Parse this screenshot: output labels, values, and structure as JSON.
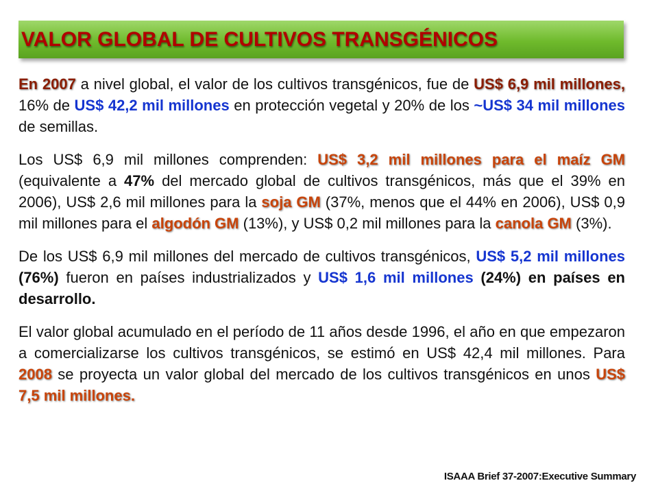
{
  "title": "VALOR GLOBAL DE CULTIVOS TRANSGÉNICOS",
  "paragraphs": [
    {
      "runs": [
        {
          "style": "red",
          "text": "En 2007"
        },
        {
          "style": "normal",
          "text": " a nivel global, el valor de los cultivos transgénicos, fue de "
        },
        {
          "style": "red",
          "text": "US$ 6,9 mil millones,"
        },
        {
          "style": "normal",
          "text": " 16% de "
        },
        {
          "style": "blue",
          "text": "US$ 42,2 mil millones"
        },
        {
          "style": "normal",
          "text": " en protección vegetal y 20% de los "
        },
        {
          "style": "blue",
          "text": "~US$ 34 mil millones"
        },
        {
          "style": "normal",
          "text": " de semillas."
        }
      ]
    },
    {
      "runs": [
        {
          "style": "normal",
          "text": "Los US$ 6,9 mil millones comprenden: "
        },
        {
          "style": "orange",
          "text": "US$ 3,2 mil millones para el maíz GM"
        },
        {
          "style": "normal",
          "text": " (equivalente a "
        },
        {
          "style": "bold",
          "text": "47%"
        },
        {
          "style": "normal",
          "text": " del mercado global de cultivos transgénicos, más que el 39% en 2006), US$ 2,6 mil millones para la "
        },
        {
          "style": "orange",
          "text": "soja GM"
        },
        {
          "style": "normal",
          "text": " (37%, menos que el 44% en 2006), US$ 0,9 mil millones para el "
        },
        {
          "style": "orange",
          "text": "algodón GM"
        },
        {
          "style": "normal",
          "text": " (13%), y US$ 0,2 mil millones para la "
        },
        {
          "style": "orange",
          "text": "canola GM"
        },
        {
          "style": "normal",
          "text": " (3%)."
        }
      ]
    },
    {
      "runs": [
        {
          "style": "normal",
          "text": "De los US$ 6,9 mil millones del mercado de cultivos transgénicos, "
        },
        {
          "style": "blue",
          "text": "US$ 5,2 mil millones"
        },
        {
          "style": "bold",
          "text": " (76%)"
        },
        {
          "style": "normal",
          "text": " fueron en países industrializados y "
        },
        {
          "style": "blue",
          "text": "US$ 1,6 mil millones"
        },
        {
          "style": "bold",
          "text": " (24%) en países en desarrollo."
        }
      ]
    },
    {
      "runs": [
        {
          "style": "normal",
          "text": "El valor global acumulado en el período de 11 años desde 1996, el año en que empezaron a comercializarse los cultivos transgénicos, se estimó en US$ 42,4 mil millones. Para "
        },
        {
          "style": "orange",
          "text": "2008"
        },
        {
          "style": "normal",
          "text": " se proyecta un valor global del mercado de los cultivos transgénicos en unos "
        },
        {
          "style": "orange",
          "text": "US$ 7,5 mil millones."
        }
      ]
    }
  ],
  "footer": "ISAAA Brief 37-2007:Executive Summary"
}
